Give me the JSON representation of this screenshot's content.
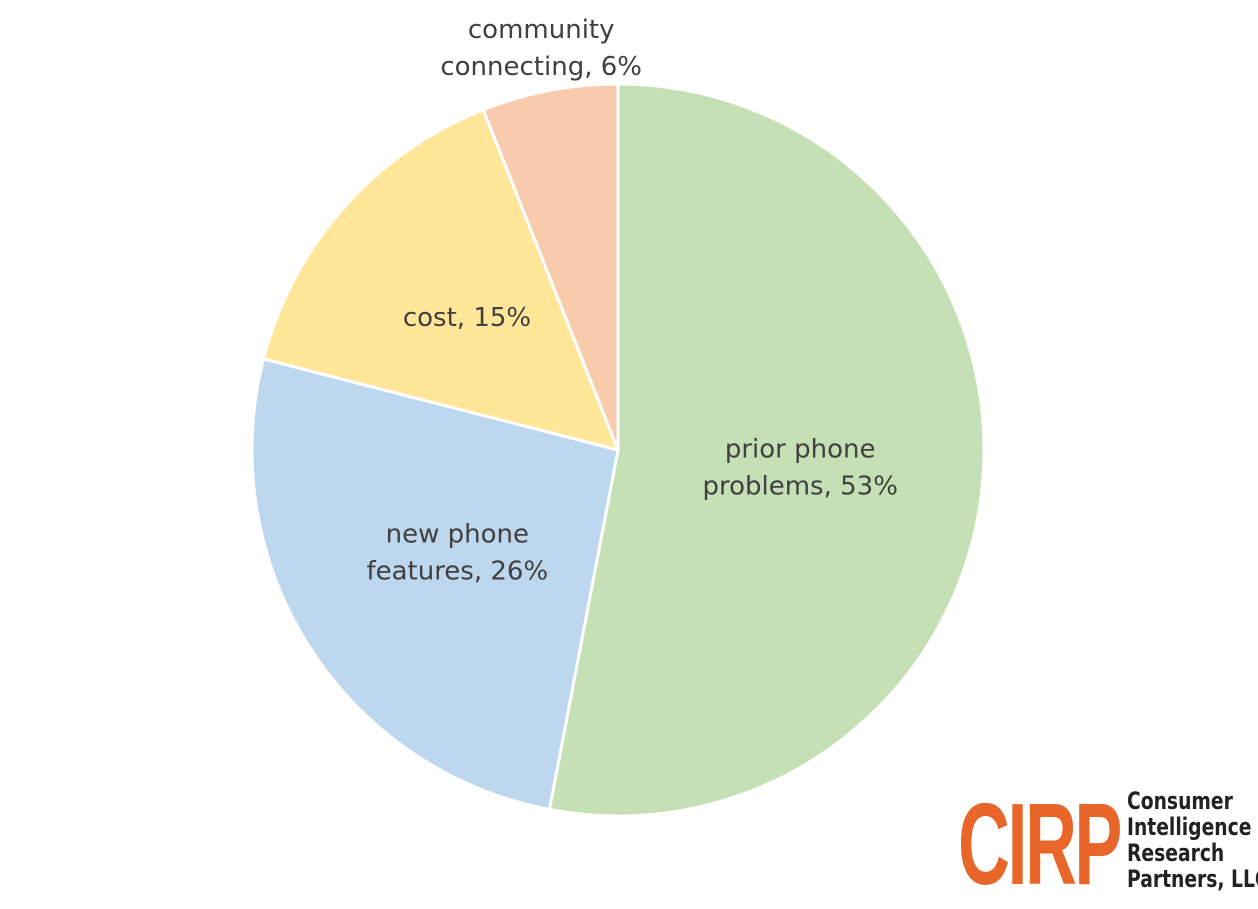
{
  "chart_data": {
    "type": "pie",
    "title": "",
    "slices": [
      {
        "label": [
          "prior phone",
          "problems, 53%"
        ],
        "value": 53,
        "color": "#c5e0b4"
      },
      {
        "label": [
          "new phone",
          "features, 26%"
        ],
        "value": 26,
        "color": "#bdd7ee"
      },
      {
        "label": [
          "cost, 15%"
        ],
        "value": 15,
        "color": "#ffe699"
      },
      {
        "label": [
          "community",
          "connecting, 6%"
        ],
        "value": 6,
        "color": "#f8cbad"
      }
    ],
    "start_angle_deg": 0,
    "direction": "clockwise",
    "legend": "none",
    "label_text_color": "#404040"
  },
  "logo": {
    "mark": "CIRP",
    "name_lines": [
      "Consumer",
      "Intelligence",
      "Research",
      "Partners, LLC"
    ],
    "mark_color": "#e8662a"
  }
}
